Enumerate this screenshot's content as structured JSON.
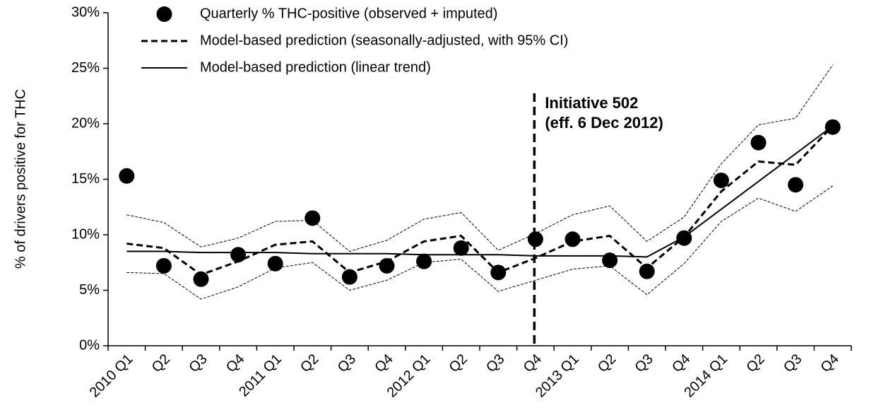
{
  "chart_data": {
    "type": "line",
    "y_label": "% of drivers positive for THC",
    "categories": [
      "2010 Q1",
      "Q2",
      "Q3",
      "Q4",
      "2011 Q1",
      "Q2",
      "Q3",
      "Q4",
      "2012 Q1",
      "Q2",
      "Q3",
      "Q4",
      "2013 Q1",
      "Q2",
      "Q3",
      "Q4",
      "2014 Q1",
      "Q2",
      "Q3",
      "Q4"
    ],
    "ylim": [
      0,
      30
    ],
    "yticks": [
      {
        "value": 0,
        "label": "0%"
      },
      {
        "value": 5,
        "label": "5%"
      },
      {
        "value": 10,
        "label": "10%"
      },
      {
        "value": 15,
        "label": "15%"
      },
      {
        "value": 20,
        "label": "20%"
      },
      {
        "value": 25,
        "label": "25%"
      },
      {
        "value": 30,
        "label": "30%"
      }
    ],
    "grid": false,
    "legend": "top-left",
    "series": [
      {
        "name": "Quarterly % THC-positive (observed + imputed)",
        "color": "#000000",
        "style": "markers",
        "values": [
          15.3,
          7.2,
          6.0,
          8.2,
          7.4,
          11.5,
          6.2,
          7.2,
          7.6,
          8.8,
          6.6,
          9.6,
          9.6,
          7.7,
          6.7,
          9.7,
          14.9,
          18.3,
          14.5,
          19.7
        ]
      },
      {
        "name": "Model-based prediction (seasonally-adjusted, with 95% CI)",
        "color": "#000000",
        "style": "dashed",
        "values": [
          9.2,
          8.8,
          6.4,
          7.6,
          9.1,
          9.4,
          6.6,
          7.6,
          9.4,
          9.9,
          6.6,
          7.9,
          9.4,
          9.9,
          7.0,
          9.8,
          13.9,
          16.6,
          16.3,
          19.8
        ],
        "ci_lower": [
          6.6,
          6.5,
          4.2,
          5.3,
          7.0,
          7.5,
          5.0,
          5.9,
          7.5,
          7.8,
          4.9,
          5.9,
          6.9,
          7.2,
          4.6,
          7.4,
          11.2,
          13.3,
          12.1,
          14.4
        ],
        "ci_upper": [
          11.8,
          11.1,
          8.9,
          9.7,
          11.2,
          11.3,
          8.5,
          9.5,
          11.4,
          12.0,
          8.6,
          10.1,
          11.8,
          12.6,
          9.4,
          11.6,
          16.4,
          19.9,
          20.5,
          25.3
        ]
      },
      {
        "name": "Model-based prediction (linear trend)",
        "color": "#000000",
        "style": "solid",
        "values": [
          8.5,
          8.5,
          8.4,
          8.4,
          8.4,
          8.3,
          8.3,
          8.3,
          8.2,
          8.2,
          8.2,
          8.1,
          8.1,
          8.1,
          8.0,
          9.8,
          12.3,
          14.8,
          17.3,
          19.8
        ]
      }
    ],
    "annotation": {
      "lines": [
        "Initiative 502",
        "(eff. 6 Dec 2012)"
      ]
    }
  }
}
